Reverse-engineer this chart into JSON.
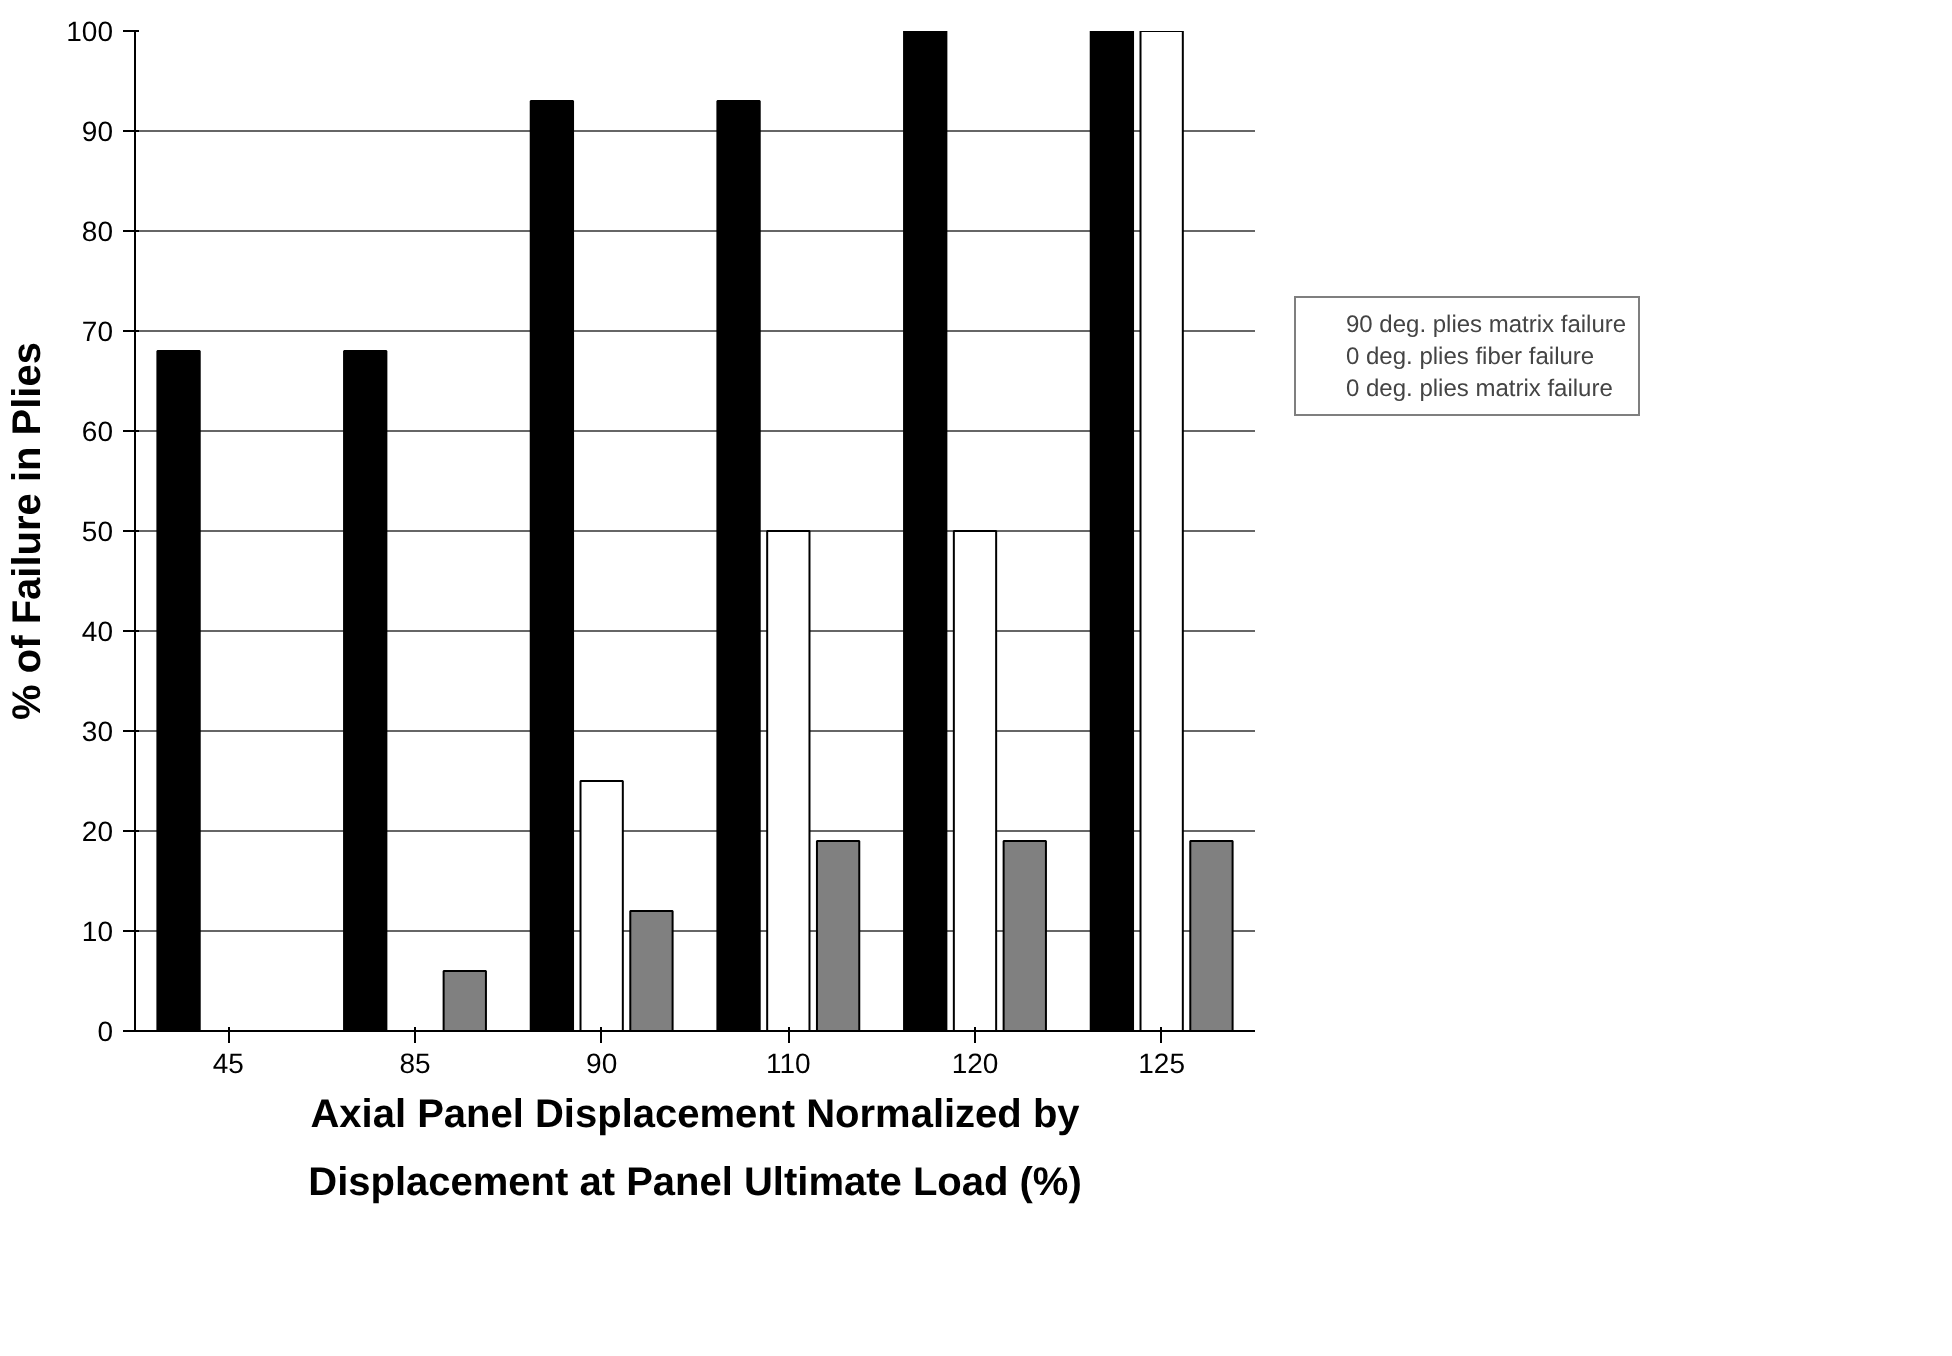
{
  "chart_data": {
    "type": "bar",
    "xlabel": "Axial Panel Displacement Normalized by\nDisplacement at Panel Ultimate Load (%)",
    "ylabel": "% of Failure in Plies",
    "categories": [
      "45",
      "85",
      "90",
      "110",
      "120",
      "125"
    ],
    "series": [
      {
        "name": "90 deg. plies matrix failure",
        "color": "#000000",
        "values": [
          68,
          68,
          93,
          93,
          100,
          100
        ]
      },
      {
        "name": "0 deg. plies fiber failure",
        "color": "#ffffff",
        "values": [
          0,
          0,
          25,
          50,
          50,
          100
        ]
      },
      {
        "name": "0 deg. plies matrix failure",
        "color": "#808080",
        "values": [
          0,
          6,
          12,
          19,
          19,
          19
        ]
      }
    ],
    "ylim": [
      0,
      100
    ],
    "yticks": [
      0,
      10,
      20,
      30,
      40,
      50,
      60,
      70,
      80,
      90,
      100
    ],
    "grid": "y",
    "legend": "right"
  }
}
